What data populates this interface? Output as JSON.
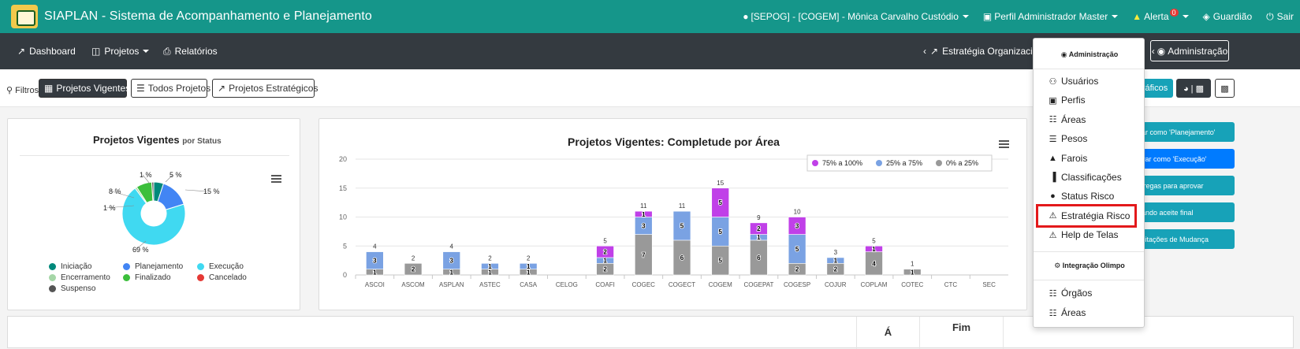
{
  "app": {
    "title": "SIAPLAN - Sistema de Acompanhamento e Planejamento"
  },
  "topbar": {
    "user": "[SEPOG] - [COGEM] - Mônica Carvalho Custódio",
    "profile": "Perfil Administrador Master",
    "alert_label": "Alerta",
    "alert_count": "0",
    "guardian": "Guardião",
    "logout": "Sair"
  },
  "nav": {
    "dashboard": "Dashboard",
    "projects": "Projetos",
    "reports": "Relatórios",
    "strategy": "Estratégia Organizacional",
    "admin": "Administração"
  },
  "filters": {
    "label": "Filtros:",
    "current": "Projetos Vigentes",
    "all": "Todos Projetos",
    "strategic": "Projetos Estratégicos",
    "charts_btn": "ráficos"
  },
  "side_buttons": [
    {
      "label": "ar como 'Planejamento'",
      "color": "#17a2b8"
    },
    {
      "label": "var como 'Execução'",
      "color": "#007bff"
    },
    {
      "label": "tregas para aprovar",
      "color": "#17a2b8"
    },
    {
      "label": "ando aceite final",
      "color": "#17a2b8"
    },
    {
      "label": "citações de Mudança",
      "color": "#17a2b8"
    }
  ],
  "dropdown": {
    "header": "Administração",
    "items": [
      {
        "label": "Usuários",
        "icon": "users-icon"
      },
      {
        "label": "Perfis",
        "icon": "id-card-icon"
      },
      {
        "label": "Áreas",
        "icon": "sitemap-icon"
      },
      {
        "label": "Pesos",
        "icon": "list-icon"
      },
      {
        "label": "Farois",
        "icon": "bell-icon"
      },
      {
        "label": "Classificações",
        "icon": "bar-chart-icon"
      },
      {
        "label": "Status Risco",
        "icon": "exclamation-circle-icon"
      },
      {
        "label": "Estratégia Risco",
        "icon": "warning-icon"
      },
      {
        "label": "Help de Telas",
        "icon": "warning-icon"
      }
    ],
    "header2": "Integração Olimpo",
    "items2": [
      {
        "label": "Órgãos",
        "icon": "sitemap-icon"
      },
      {
        "label": "Áreas",
        "icon": "sitemap-icon"
      }
    ]
  },
  "bottom": {
    "col_a": "Á",
    "col_b": "Fim"
  },
  "chart_data": [
    {
      "type": "pie",
      "title": "Projetos Vigentes",
      "subtitle": "por Status",
      "slices": [
        {
          "name": "Iniciação",
          "value": 5,
          "color": "#00897b"
        },
        {
          "name": "Planejamento",
          "value": 15,
          "color": "#4285f4"
        },
        {
          "name": "Execução",
          "value": 69,
          "color": "#40d9f1"
        },
        {
          "name": "Encerramento",
          "value": 1,
          "color": "#a5d6a7"
        },
        {
          "name": "Finalizado",
          "value": 8,
          "color": "#3cbf3c"
        },
        {
          "name": "Cancelado",
          "value": 0,
          "color": "#e53935"
        },
        {
          "name": "Suspenso",
          "value": 1,
          "color": "#555555"
        }
      ],
      "labels_printed": [
        "5 %",
        "15 %",
        "69 %",
        "1 %",
        "8 %",
        "1 %"
      ]
    },
    {
      "type": "bar",
      "title": "Projetos Vigentes: Completude por Área",
      "categories": [
        "ASCOI",
        "ASCOM",
        "ASPLAN",
        "ASTEC",
        "CASA",
        "CELOG",
        "COAFI",
        "COGEC",
        "COGECT",
        "COGEM",
        "COGEPAT",
        "COGESP",
        "COJUR",
        "COPLAM",
        "COTEC",
        "CTC",
        "SEC"
      ],
      "series": [
        {
          "name": "0% a 25%",
          "color": "#999999",
          "values": [
            1,
            2,
            1,
            1,
            1,
            0,
            2,
            7,
            6,
            5,
            6,
            2,
            2,
            4,
            1,
            0,
            0
          ]
        },
        {
          "name": "25% a 75%",
          "color": "#7aa2e3",
          "values": [
            3,
            0,
            3,
            1,
            1,
            0,
            1,
            3,
            5,
            5,
            1,
            5,
            1,
            0,
            0,
            0,
            0
          ]
        },
        {
          "name": "75% a 100%",
          "color": "#c040e8",
          "values": [
            0,
            0,
            0,
            0,
            0,
            0,
            2,
            1,
            0,
            5,
            2,
            3,
            0,
            1,
            0,
            0,
            0
          ]
        }
      ],
      "totals": [
        4,
        2,
        4,
        2,
        2,
        null,
        5,
        11,
        11,
        15,
        9,
        10,
        3,
        5,
        1,
        null,
        null
      ],
      "ylim": [
        0,
        20
      ],
      "yticks": [
        0,
        5,
        10,
        15,
        20
      ],
      "legend_order": [
        "75% a 100%",
        "25% a 75%",
        "0% a 25%"
      ],
      "legend": "top-right"
    }
  ]
}
